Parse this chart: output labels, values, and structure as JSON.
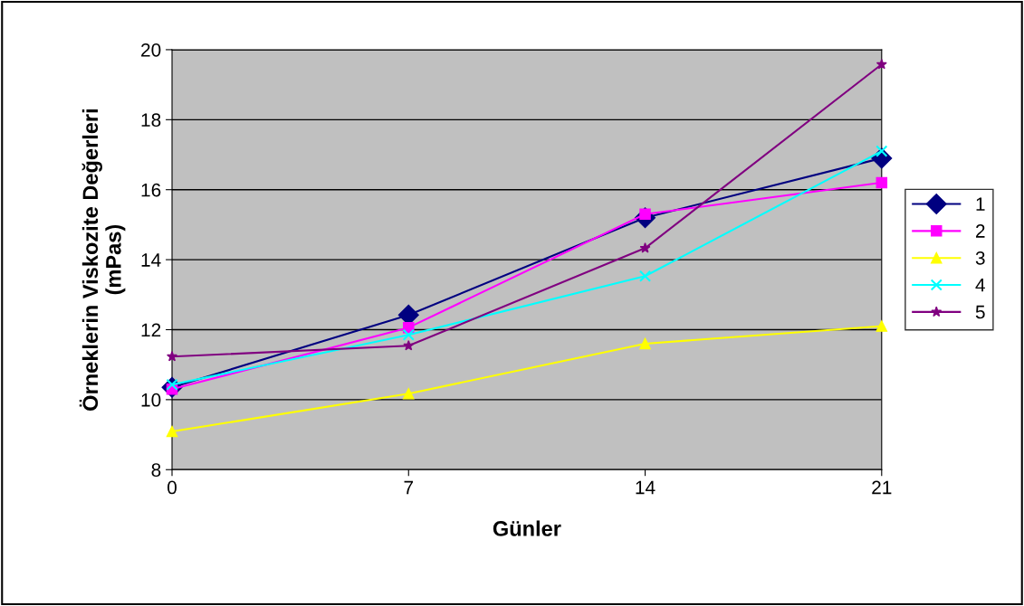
{
  "chart_data": {
    "type": "line",
    "xlabel": "Günler",
    "ylabel": "Örneklerin Viskozite Değerleri\n(mPas)",
    "categories": [
      "0",
      "7",
      "14",
      "21"
    ],
    "ylim": [
      8,
      20
    ],
    "yticks": [
      8,
      10,
      12,
      14,
      16,
      18,
      20
    ],
    "grid": "y",
    "legend": "right",
    "line_style": "solid",
    "series": [
      {
        "name": "1",
        "color": "#000080",
        "marker": "diamond",
        "values": [
          10.35,
          12.42,
          15.2,
          16.9
        ]
      },
      {
        "name": "2",
        "color": "#ff00ff",
        "marker": "square",
        "values": [
          10.3,
          12.06,
          15.3,
          16.2
        ]
      },
      {
        "name": "3",
        "color": "#ffff00",
        "marker": "triangle",
        "values": [
          9.09,
          10.17,
          11.6,
          12.1
        ]
      },
      {
        "name": "4",
        "color": "#00ffff",
        "marker": "cross",
        "values": [
          10.43,
          11.85,
          13.53,
          17.1
        ]
      },
      {
        "name": "5",
        "color": "#800080",
        "marker": "star",
        "values": [
          11.23,
          11.54,
          14.33,
          19.58
        ]
      }
    ]
  }
}
